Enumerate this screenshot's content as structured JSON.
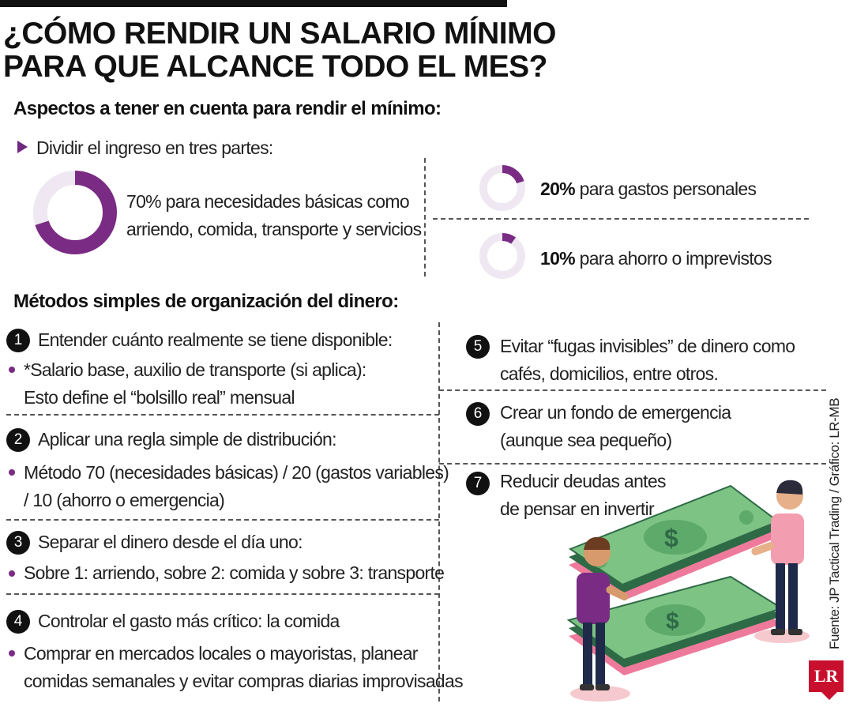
{
  "title": {
    "line1": "¿CÓMO RENDIR UN SALARIO MÍNIMO",
    "line2": "PARA QUE ALCANCE TODO EL MES?"
  },
  "aspects": {
    "heading": "Aspectos a tener en cuenta para rendir el mínimo:",
    "intro": "Dividir el ingreso en tres partes:",
    "items": [
      {
        "percent": 70,
        "line1": "70% para necesidades básicas como",
        "line2": "arriendo, comida, transporte y servicios"
      },
      {
        "percent": 20,
        "pct_label": "20%",
        "text": " para gastos personales"
      },
      {
        "percent": 10,
        "pct_label": "10%",
        "text": " para ahorro o imprevistos"
      }
    ]
  },
  "methods": {
    "heading": "Métodos simples de organización del dinero:",
    "items": [
      {
        "num": "1",
        "title": "Entender cuánto realmente se tiene disponible:",
        "bullet1": "*Salario base, auxilio de transporte (si aplica):",
        "bullet2": "Esto define el “bolsillo real” mensual"
      },
      {
        "num": "2",
        "title": "Aplicar una regla simple de distribución:",
        "bullet1": "Método 70 (necesidades básicas) / 20 (gastos variables)",
        "bullet2": "/ 10 (ahorro o emergencia)"
      },
      {
        "num": "3",
        "title": "Separar el dinero desde el día uno:",
        "bullet1": "Sobre 1: arriendo, sobre 2: comida y sobre 3: transporte"
      },
      {
        "num": "4",
        "title": "Controlar el gasto más crítico: la comida",
        "bullet1": "Comprar en mercados locales o mayoristas, planear",
        "bullet2": "comidas semanales y evitar compras diarias improvisadas"
      },
      {
        "num": "5",
        "line1": "Evitar “fugas invisibles” de dinero como",
        "line2": "cafés, domicilios, entre otros."
      },
      {
        "num": "6",
        "line1": "Crear un fondo de emergencia",
        "line2": "(aunque sea pequeño)"
      },
      {
        "num": "7",
        "line1": "Reducir deudas antes",
        "line2": "de pensar en invertir"
      }
    ]
  },
  "credit": "Fuente: JP Tactical Trading / Gráfico: LR-MB",
  "logo": "LR",
  "colors": {
    "accent": "#7a2b83",
    "ring_bg": "#efe8f2",
    "money": "#7dc383",
    "money_dark": "#2f6a47"
  }
}
